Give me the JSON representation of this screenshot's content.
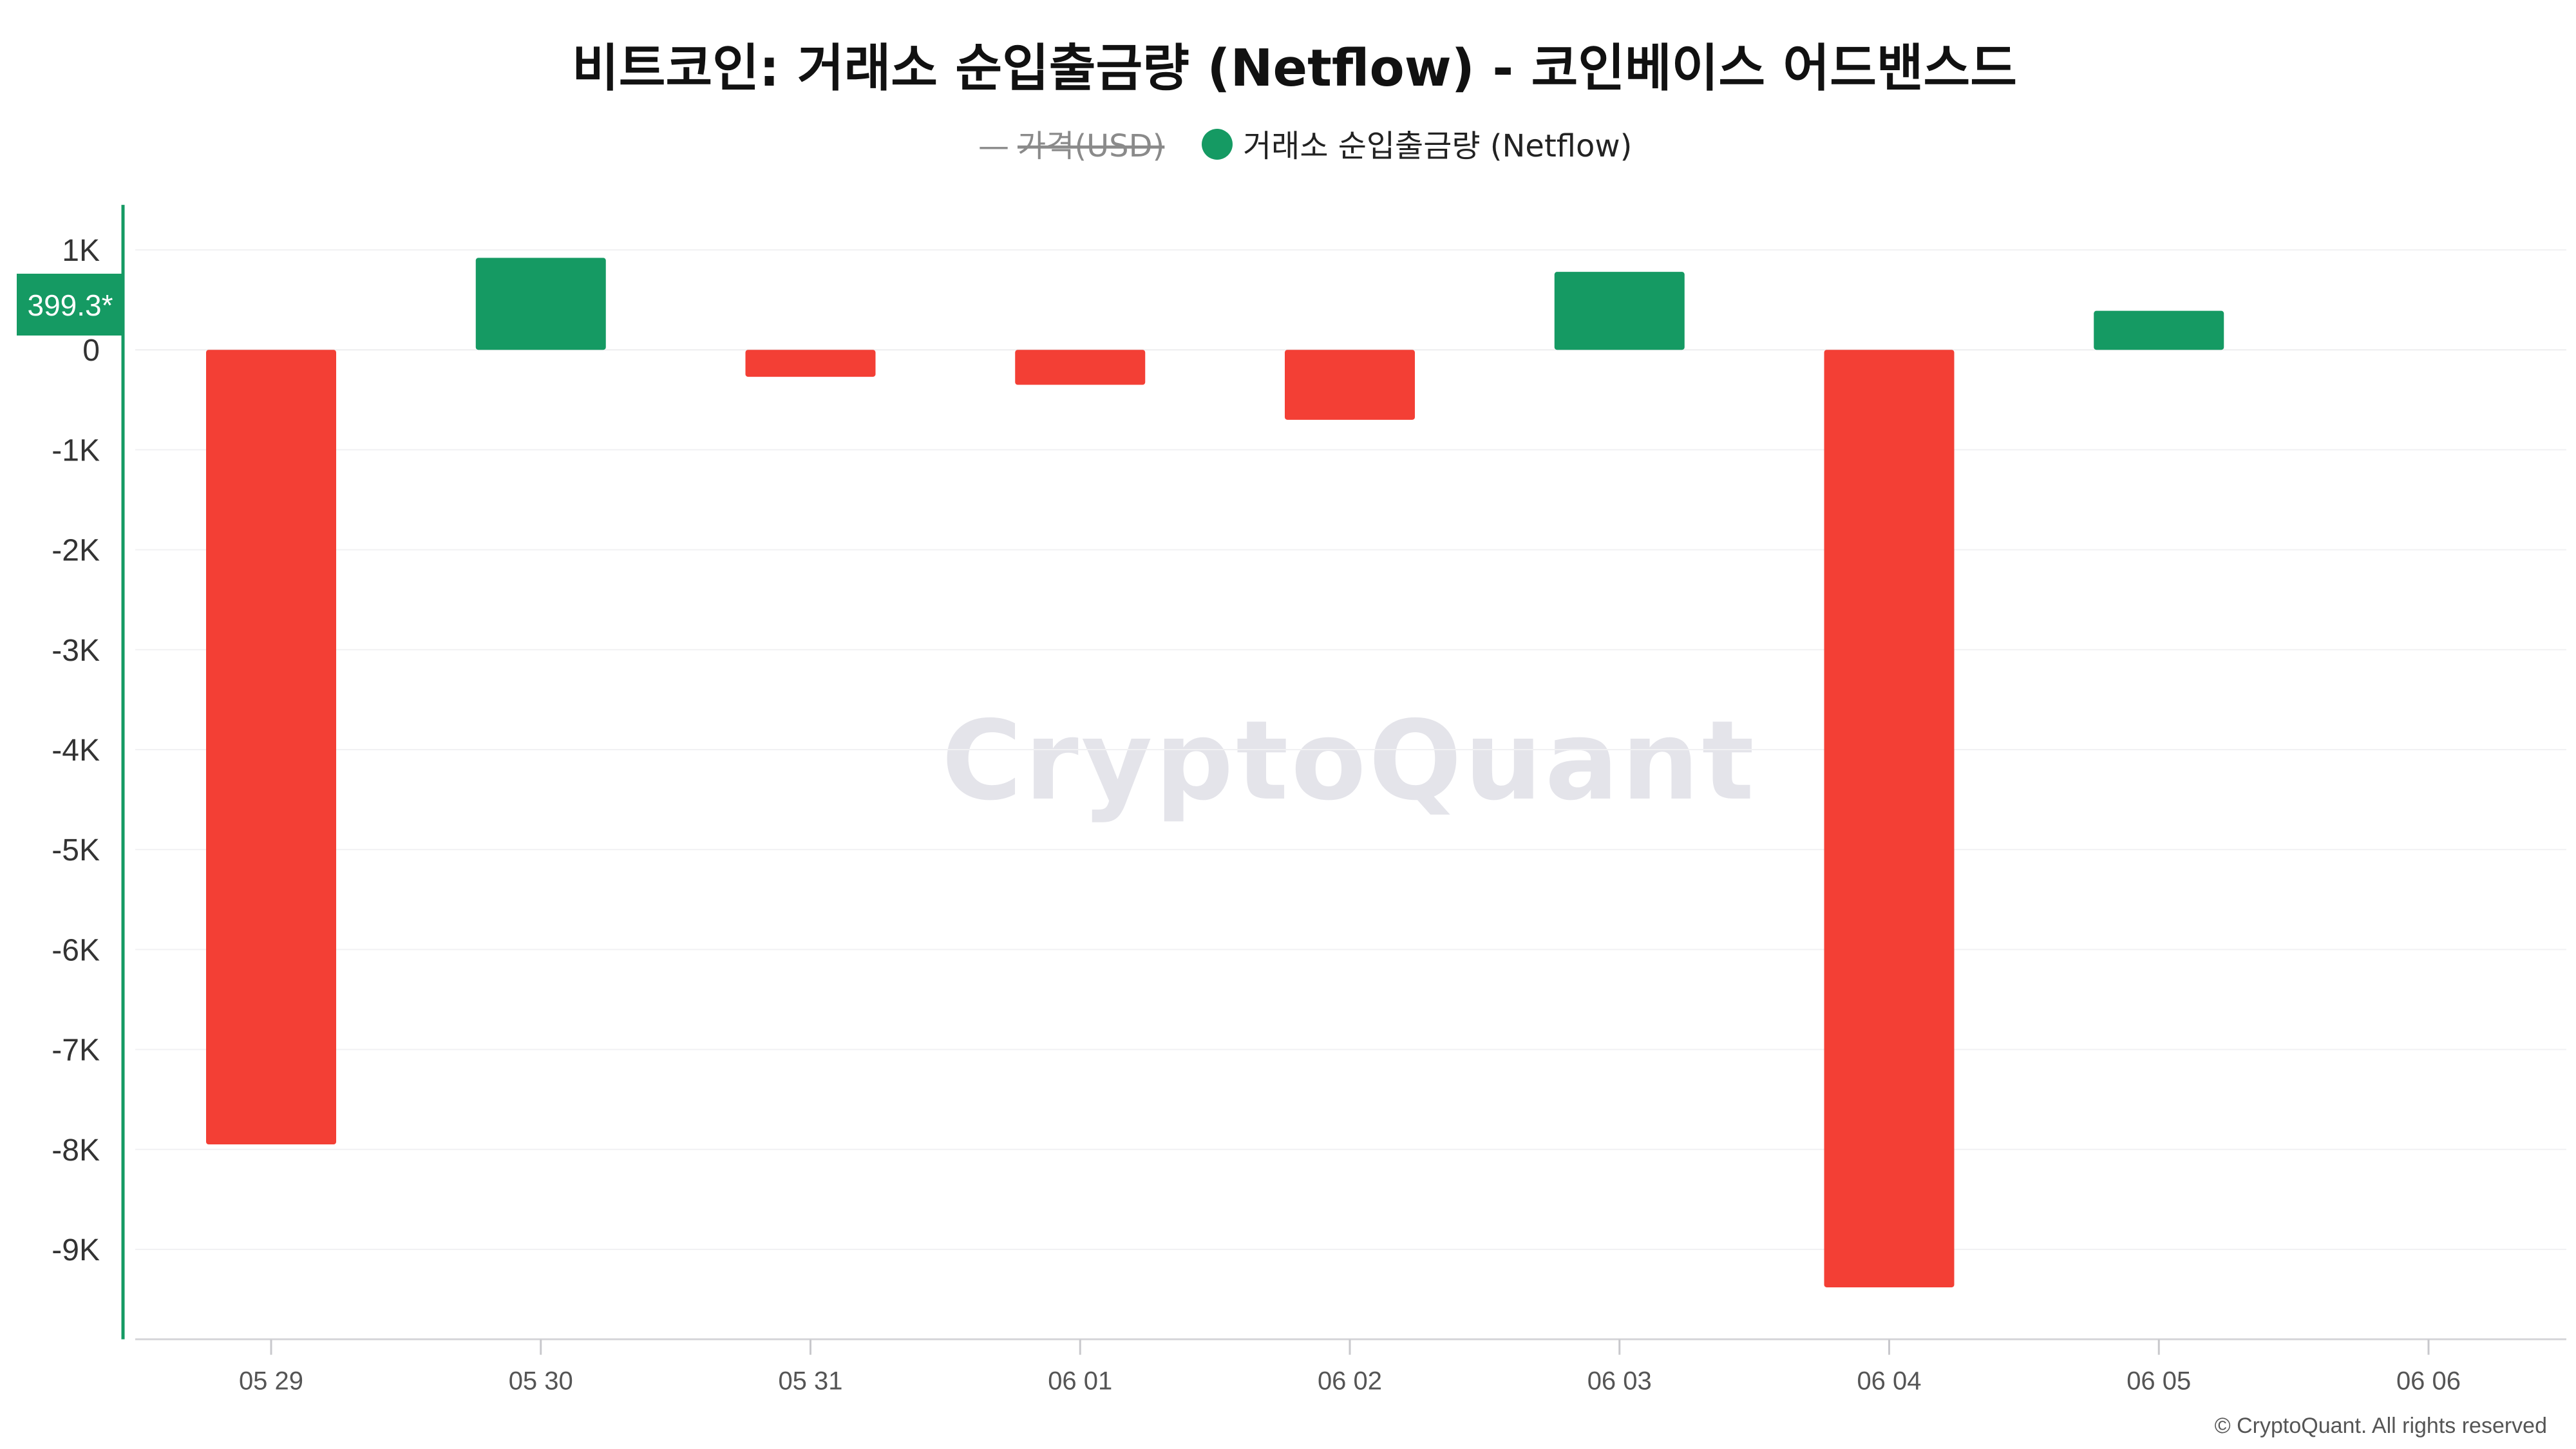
{
  "title": "비트코인: 거래소 순입출금량 (Netflow) - 코인베이스 어드밴스드",
  "legend": {
    "price_line_symbol": "—",
    "price_label": "가격(USD)",
    "price_disabled": true,
    "netflow_label": "거래소 순입출금량 (Netflow)"
  },
  "current_value_label": "399.3*",
  "watermark": "CryptoQuant",
  "copyright": "© CryptoQuant. All rights reserved",
  "colors": {
    "positive": "#159a63",
    "negative": "#f33f35",
    "axis_accent": "#159a63",
    "grid": "#f1f1f3"
  },
  "chart_data": {
    "type": "bar",
    "categories": [
      "05 29",
      "05 30",
      "05 31",
      "06 01",
      "06 02",
      "06 03",
      "06 04",
      "06 05",
      "06 06"
    ],
    "series": [
      {
        "name": "거래소 순입출금량 (Netflow)",
        "values": [
          -7950,
          920,
          -270,
          -350,
          -700,
          780,
          -9380,
          390,
          null
        ]
      }
    ],
    "yticks": [
      1000,
      0,
      -1000,
      -2000,
      -3000,
      -4000,
      -5000,
      -6000,
      -7000,
      -8000,
      -9000
    ],
    "ytick_labels": [
      "1K",
      "0",
      "-1K",
      "-2K",
      "-3K",
      "-4K",
      "-5K",
      "-6K",
      "-7K",
      "-8K",
      "-9K"
    ],
    "ylim": [
      -9900,
      1450
    ],
    "grid": true,
    "legend_position": "top-center"
  }
}
